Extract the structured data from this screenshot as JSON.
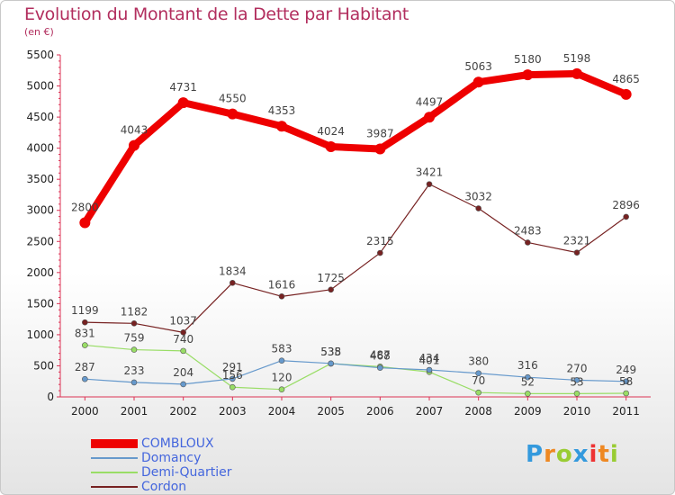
{
  "chart_data": {
    "type": "line",
    "title": "Evolution du Montant de la Dette par Habitant",
    "subtitle": "(en €)",
    "categories": [
      "2000",
      "2001",
      "2002",
      "2003",
      "2004",
      "2005",
      "2006",
      "2007",
      "2008",
      "2009",
      "2010",
      "2011"
    ],
    "ylim": [
      0,
      5500
    ],
    "yticks": [
      0,
      500,
      1000,
      1500,
      2000,
      2500,
      3000,
      3500,
      4000,
      4500,
      5000,
      5500
    ],
    "grid": false,
    "legend_position": "bottom-left",
    "series": [
      {
        "name": "COMBLOUX",
        "color": "#ee0000",
        "values": [
          2800,
          4043,
          4731,
          4550,
          4353,
          4024,
          3987,
          4497,
          5063,
          5180,
          5198,
          4865
        ]
      },
      {
        "name": "Domancy",
        "color": "#6699cc",
        "values": [
          287,
          233,
          204,
          291,
          583,
          538,
          468,
          434,
          380,
          316,
          270,
          249
        ]
      },
      {
        "name": "Demi-Quartier",
        "color": "#99dd66",
        "values": [
          831,
          759,
          740,
          156,
          120,
          535,
          487,
          401,
          70,
          52,
          53,
          58
        ]
      },
      {
        "name": "Cordon",
        "color": "#772222",
        "values": [
          1199,
          1182,
          1037,
          1834,
          1616,
          1725,
          2315,
          3421,
          3032,
          2483,
          2321,
          2896
        ]
      }
    ]
  },
  "logo": {
    "letters": [
      "P",
      "r",
      "o",
      "x",
      "i",
      "t",
      "i"
    ],
    "colors": [
      "#3399dd",
      "#ee8822",
      "#99cc33",
      "#3399dd",
      "#ee3333",
      "#ee8822",
      "#99cc33"
    ]
  }
}
